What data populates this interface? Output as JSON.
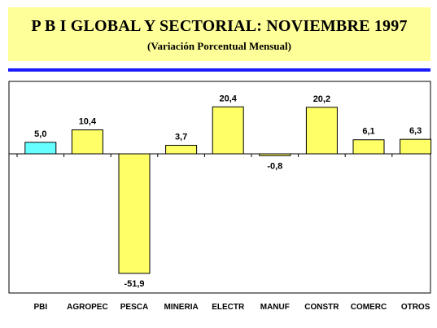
{
  "header": {
    "title": "P B I  GLOBAL Y SECTORIAL: NOVIEMBRE 1997",
    "subtitle": "(Variación Porcentual Mensual)"
  },
  "colors": {
    "title_bg": "#ffff99",
    "rule": "#1a1aff",
    "highlight_bar": "#66ffff",
    "bar": "#ffff66"
  },
  "chart_data": {
    "type": "bar",
    "title": "P B I  GLOBAL Y SECTORIAL: NOVIEMBRE 1997",
    "subtitle": "(Variación Porcentual Mensual)",
    "categories": [
      "PBI",
      "AGROPEC",
      "PESCA",
      "MINERIA",
      "ELECTR",
      "MANUF",
      "CONSTR",
      "COMERC",
      "OTROS"
    ],
    "values": [
      5.0,
      10.4,
      -51.9,
      3.7,
      20.4,
      -0.8,
      20.2,
      6.1,
      6.3
    ],
    "data_labels": [
      "5,0",
      "10,4",
      "-51,9",
      "3,7",
      "20,4",
      "-0,8",
      "20,2",
      "6,1",
      "6,3"
    ],
    "highlight_category": "PBI",
    "ylim": [
      -60,
      30
    ],
    "grid": false,
    "legend": "none",
    "xlabel": "",
    "ylabel": ""
  }
}
